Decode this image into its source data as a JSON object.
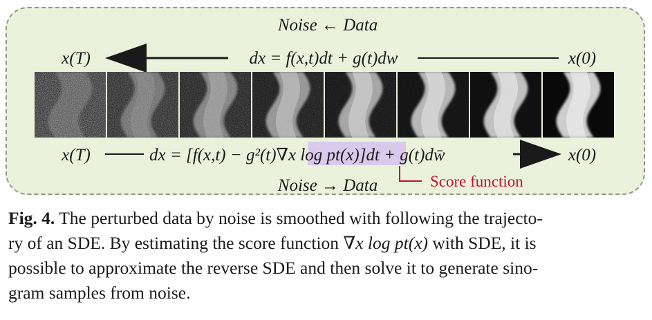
{
  "diagram": {
    "top_label": "Noise ← Data",
    "bottom_label": "Noise → Data",
    "forward": {
      "start": "x(T)",
      "end": "x(0)",
      "equation": "dx = f(x,t)dt + g(t)dw"
    },
    "reverse": {
      "start": "x(T)",
      "end": "x(0)",
      "equation_left": "dx = [f(x,t) − g²(t)",
      "equation_score": "∇x log pt(x)",
      "equation_right": "]dt + g(t)dw̄"
    },
    "score_label": "Score function",
    "colors": {
      "panel_bg": "#eaf2dc",
      "border": "#8c9a80",
      "highlight": "#d9c9ea",
      "score": "#c8102e"
    },
    "frames": [
      {
        "id": 1,
        "noise": 1.0
      },
      {
        "id": 2,
        "noise": 0.78
      },
      {
        "id": 3,
        "noise": 0.6
      },
      {
        "id": 4,
        "noise": 0.42
      },
      {
        "id": 5,
        "noise": 0.28
      },
      {
        "id": 6,
        "noise": 0.16
      },
      {
        "id": 7,
        "noise": 0.08
      },
      {
        "id": 8,
        "noise": 0.0
      }
    ]
  },
  "caption": {
    "label": "Fig. 4.",
    "line1": " The perturbed data by noise is smoothed with following the trajecto-",
    "line2a": "ry of an SDE. By estimating the score function ",
    "line2_math": "∇x log pt(x)",
    "line2b": " with SDE, it is",
    "line3": "possible to approximate the reverse SDE and then solve it to generate sino-",
    "line4": "gram samples from noise."
  }
}
